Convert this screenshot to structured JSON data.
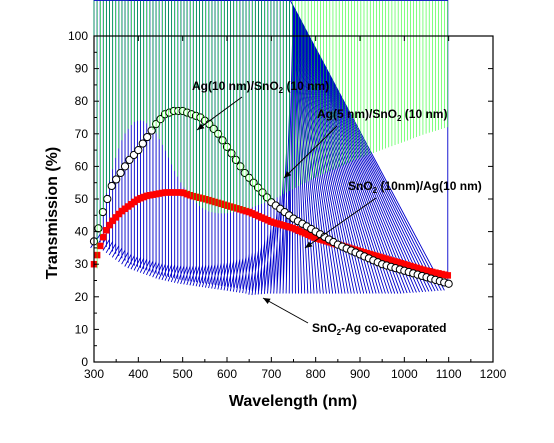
{
  "chart_data": {
    "type": "scatter",
    "title": "",
    "xlabel": "Wavelength (nm)",
    "ylabel": "Transmission (%)",
    "xlim": [
      300,
      1200
    ],
    "ylim": [
      0,
      100
    ],
    "x_ticks": [
      "300",
      "400",
      "500",
      "600",
      "700",
      "800",
      "900",
      "1000",
      "1100",
      "1200"
    ],
    "y_ticks": [
      "0",
      "10",
      "20",
      "30",
      "40",
      "50",
      "60",
      "70",
      "80",
      "90",
      "100"
    ],
    "grid": false,
    "legend": "none (curves labeled with annotations and arrows)",
    "annotations": [
      {
        "id": "ag10",
        "pre": "Ag(10 nm)/SnO",
        "sub": "2",
        "post": " (10 nm)"
      },
      {
        "id": "ag5",
        "pre": "Ag(5 nm)/SnO",
        "sub": "2",
        "post": " (10 nm)"
      },
      {
        "id": "sno2",
        "pre": "SnO",
        "sub": "2",
        "post": " (10nm)/Ag(10 nm)"
      },
      {
        "id": "coevap",
        "pre": "SnO",
        "sub": "2",
        "post": "-Ag co-evaporated"
      }
    ],
    "series": [
      {
        "id": "ag10",
        "marker": "open circle",
        "color": "#000000",
        "points": [
          [
            300,
            37
          ],
          [
            310,
            41
          ],
          [
            320,
            46
          ],
          [
            330,
            50
          ],
          [
            340,
            54
          ],
          [
            360,
            58
          ],
          [
            380,
            62
          ],
          [
            400,
            65
          ],
          [
            420,
            69
          ],
          [
            440,
            73
          ],
          [
            460,
            76
          ],
          [
            480,
            77
          ],
          [
            500,
            77
          ],
          [
            520,
            76
          ],
          [
            540,
            75
          ],
          [
            560,
            73
          ],
          [
            580,
            70
          ],
          [
            600,
            66
          ],
          [
            620,
            62
          ],
          [
            640,
            58
          ],
          [
            660,
            55
          ],
          [
            680,
            52
          ],
          [
            700,
            49
          ],
          [
            720,
            47
          ],
          [
            750,
            44
          ],
          [
            800,
            40
          ],
          [
            850,
            36
          ],
          [
            900,
            33
          ],
          [
            950,
            30
          ],
          [
            1000,
            28
          ],
          [
            1050,
            26
          ],
          [
            1100,
            24
          ]
        ]
      },
      {
        "id": "ag5",
        "marker": "filled diamond",
        "color": "#00ff00",
        "points": [
          [
            300,
            17
          ],
          [
            305,
            24
          ],
          [
            310,
            33
          ],
          [
            320,
            45
          ],
          [
            330,
            52
          ],
          [
            340,
            57
          ],
          [
            350,
            62
          ],
          [
            360,
            66
          ],
          [
            370,
            69
          ],
          [
            380,
            71
          ],
          [
            390,
            72.5
          ],
          [
            400,
            73
          ],
          [
            410,
            73
          ],
          [
            420,
            72
          ],
          [
            440,
            69
          ],
          [
            460,
            64
          ],
          [
            480,
            58
          ],
          [
            500,
            53
          ],
          [
            520,
            49
          ],
          [
            540,
            46.5
          ],
          [
            560,
            45
          ],
          [
            580,
            44.5
          ],
          [
            600,
            44.5
          ],
          [
            620,
            45
          ],
          [
            650,
            46
          ],
          [
            700,
            48.5
          ],
          [
            750,
            52
          ],
          [
            800,
            55.5
          ],
          [
            850,
            58.5
          ],
          [
            900,
            61.5
          ],
          [
            950,
            64
          ],
          [
            1000,
            66.5
          ],
          [
            1050,
            69
          ],
          [
            1100,
            71
          ]
        ]
      },
      {
        "id": "sno2",
        "marker": "filled square",
        "color": "#ff0000",
        "points": [
          [
            300,
            30
          ],
          [
            310,
            34
          ],
          [
            320,
            38
          ],
          [
            330,
            41
          ],
          [
            340,
            43
          ],
          [
            360,
            46
          ],
          [
            380,
            48
          ],
          [
            400,
            50
          ],
          [
            420,
            51
          ],
          [
            440,
            51.5
          ],
          [
            460,
            52
          ],
          [
            480,
            52
          ],
          [
            500,
            52
          ],
          [
            520,
            51
          ],
          [
            550,
            50
          ],
          [
            600,
            48
          ],
          [
            650,
            46
          ],
          [
            700,
            43
          ],
          [
            750,
            41
          ],
          [
            800,
            38
          ],
          [
            850,
            36
          ],
          [
            900,
            34
          ],
          [
            950,
            32
          ],
          [
            1000,
            30
          ],
          [
            1050,
            28
          ],
          [
            1100,
            26.5
          ]
        ]
      },
      {
        "id": "coevap",
        "marker": "open triangle",
        "color": "#0000cc",
        "points": [
          [
            300,
            35
          ],
          [
            305,
            36
          ],
          [
            310,
            36
          ],
          [
            320,
            35
          ],
          [
            340,
            33
          ],
          [
            360,
            31
          ],
          [
            380,
            29
          ],
          [
            400,
            28
          ],
          [
            420,
            27
          ],
          [
            450,
            25.5
          ],
          [
            500,
            24
          ],
          [
            550,
            23
          ],
          [
            600,
            22
          ],
          [
            650,
            21
          ],
          [
            660,
            20.5
          ],
          [
            700,
            21
          ],
          [
            750,
            21
          ],
          [
            800,
            21
          ],
          [
            850,
            21
          ],
          [
            900,
            21
          ],
          [
            950,
            21
          ],
          [
            1000,
            21
          ],
          [
            1050,
            21.5
          ],
          [
            1100,
            22
          ]
        ]
      }
    ]
  }
}
